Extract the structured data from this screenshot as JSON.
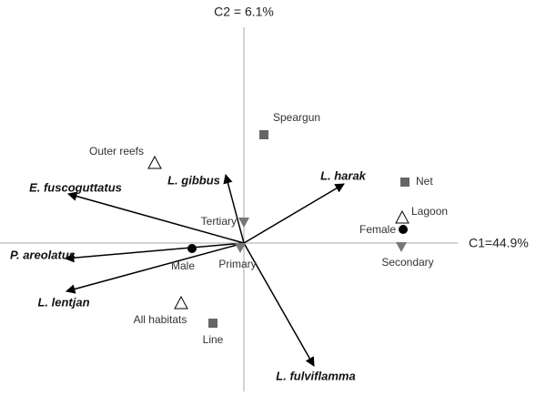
{
  "chart_data": {
    "type": "scatter",
    "x_label": "C1=44.9%",
    "y_label": "C2 = 6.1%",
    "xlim": [
      -268,
      332
    ],
    "ylim": [
      -168,
      267
    ],
    "series": [
      {
        "marker": "square",
        "color": "#666666",
        "x": [
          22,
          177,
          -34
        ],
        "y": [
          119,
          67,
          -88
        ],
        "labels": [
          "Speargun",
          "Net",
          "Line"
        ]
      },
      {
        "marker": "triangle-open",
        "color": "#000000",
        "x": [
          -98,
          174,
          -69
        ],
        "y": [
          87,
          27,
          -67
        ],
        "labels": [
          "Outer reefs",
          "Lagoon",
          "All habitats"
        ]
      },
      {
        "marker": "circle",
        "color": "#000000",
        "x": [
          -57,
          175
        ],
        "y": [
          -6,
          15
        ],
        "labels": [
          "Male",
          "Female"
        ]
      },
      {
        "marker": "triangle-down",
        "color": "#777777",
        "x": [
          0,
          173,
          -4
        ],
        "y": [
          23,
          -4,
          -5
        ],
        "labels": [
          "Tertiary",
          "Secondary",
          "Primary"
        ]
      }
    ],
    "vectors": {
      "color": "#000000",
      "x": [
        110,
        -20,
        -193,
        -196,
        -195,
        77
      ],
      "y": [
        65,
        75,
        54,
        -17,
        -53,
        -135
      ],
      "labels": [
        "L. harak",
        "L. gibbus",
        "E. fuscoguttatus",
        "P. areolatus",
        "L. lentjan",
        "L. fulviflamma"
      ]
    }
  }
}
